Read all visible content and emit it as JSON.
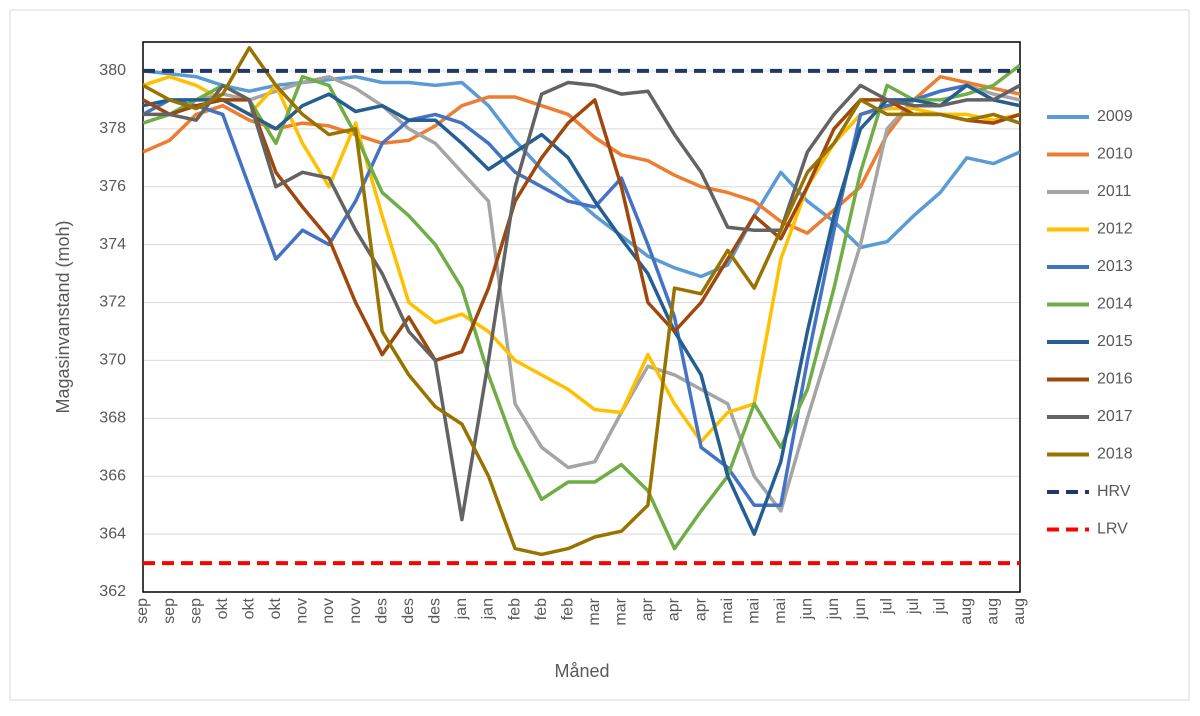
{
  "chart_data": {
    "type": "line",
    "x_label": "Måned",
    "y_label": "Magasinvanstand (moh)",
    "categories": [
      "sep",
      "sep",
      "sep",
      "okt",
      "okt",
      "okt",
      "nov",
      "nov",
      "nov",
      "des",
      "des",
      "des",
      "jan",
      "jan",
      "feb",
      "feb",
      "feb",
      "mar",
      "mar",
      "apr",
      "apr",
      "apr",
      "mai",
      "mai",
      "mai",
      "jun",
      "jun",
      "jun",
      "jul",
      "jul",
      "jul",
      "aug",
      "aug",
      "aug"
    ],
    "ylim": [
      362,
      381
    ],
    "yticks": [
      362,
      364,
      366,
      368,
      370,
      372,
      374,
      376,
      378,
      380
    ],
    "grid": true,
    "legend": "right",
    "series": [
      {
        "name": "2009",
        "color": "#5b9bd5",
        "values": [
          380,
          379.9,
          379.8,
          379.5,
          379.3,
          379.5,
          379.6,
          379.7,
          379.8,
          379.6,
          379.6,
          379.5,
          379.6,
          378.8,
          377.6,
          376.6,
          375.8,
          375,
          374.3,
          373.6,
          373.2,
          372.9,
          373.3,
          375,
          376.5,
          375.5,
          374.8,
          373.9,
          374.1,
          375,
          375.8,
          377,
          376.8,
          377.2
        ]
      },
      {
        "name": "2010",
        "color": "#ed7d31",
        "values": [
          377.2,
          377.6,
          378.5,
          378.8,
          378.3,
          378,
          378.2,
          378.1,
          377.8,
          377.5,
          377.6,
          378.1,
          378.8,
          379.1,
          379.1,
          378.8,
          378.5,
          377.7,
          377.1,
          376.9,
          376.4,
          376,
          375.8,
          375.5,
          374.8,
          374.4,
          375.2,
          376,
          377.8,
          379,
          379.8,
          379.6,
          379.4,
          379.2
        ]
      },
      {
        "name": "2011",
        "color": "#a5a5a5",
        "values": [
          379,
          378.5,
          379,
          379.2,
          379,
          379.3,
          379.6,
          379.8,
          379.4,
          378.8,
          378,
          377.5,
          376.5,
          375.5,
          368.5,
          367,
          366.3,
          366.5,
          368.2,
          369.8,
          369.5,
          369,
          368.5,
          366,
          364.8,
          368,
          371,
          374,
          378,
          379,
          379.3,
          379.5,
          379.2,
          379
        ]
      },
      {
        "name": "2012",
        "color": "#ffc000",
        "values": [
          379.5,
          379.8,
          379.5,
          379,
          378.5,
          379.5,
          377.5,
          376,
          378.2,
          375,
          372,
          371.3,
          371.6,
          371,
          370,
          369.5,
          369,
          368.3,
          368.2,
          370.2,
          368.5,
          367.2,
          368.2,
          368.5,
          373.5,
          376,
          377.5,
          378.5,
          378.7,
          378.7,
          378.5,
          378.5,
          378.3,
          378.5
        ]
      },
      {
        "name": "2013",
        "color": "#4472c4",
        "values": [
          378.5,
          379,
          378.8,
          378.5,
          376,
          373.5,
          374.5,
          374,
          375.5,
          377.5,
          378.3,
          378.5,
          378.2,
          377.5,
          376.5,
          376,
          375.5,
          375.3,
          376.3,
          374,
          371.5,
          367,
          366.3,
          365,
          365,
          370,
          374.5,
          378.5,
          378.8,
          379,
          379.3,
          379.5,
          379,
          379.5
        ]
      },
      {
        "name": "2014",
        "color": "#70ad47",
        "values": [
          378.2,
          378.5,
          379,
          379.5,
          379,
          377.5,
          379.8,
          379.5,
          377.8,
          375.8,
          375,
          374,
          372.5,
          369.5,
          367,
          365.2,
          365.8,
          365.8,
          366.4,
          365.5,
          363.5,
          364.8,
          366,
          368.5,
          367,
          369,
          372.5,
          376.5,
          379.5,
          379,
          379,
          379.2,
          379.5,
          380.2
        ]
      },
      {
        "name": "2015",
        "color": "#255e91",
        "values": [
          378.8,
          379,
          379,
          379,
          378.5,
          378,
          378.8,
          379.2,
          378.6,
          378.8,
          378.3,
          378.3,
          377.5,
          376.6,
          377.2,
          377.8,
          377,
          375.5,
          374.2,
          373,
          371,
          369.5,
          366,
          364,
          366.5,
          371,
          375,
          378,
          379,
          379,
          378.8,
          379.5,
          379,
          378.8
        ]
      },
      {
        "name": "2016",
        "color": "#9e480e",
        "values": [
          379,
          378.5,
          378.8,
          379,
          379,
          376.5,
          375.3,
          374.2,
          372,
          370.2,
          371.5,
          370,
          370.3,
          372.5,
          375.5,
          377,
          378.2,
          379,
          376,
          372,
          371,
          372,
          373.5,
          375,
          374.2,
          376,
          378,
          379,
          379,
          378.5,
          378.5,
          378.3,
          378.2,
          378.5
        ]
      },
      {
        "name": "2017",
        "color": "#636363",
        "values": [
          378.5,
          378.5,
          378.3,
          379.5,
          379,
          376,
          376.5,
          376.3,
          374.5,
          373,
          371,
          370,
          364.5,
          370,
          376,
          379.2,
          379.6,
          379.5,
          379.2,
          379.3,
          377.8,
          376.5,
          374.6,
          374.5,
          374.5,
          377.2,
          378.5,
          379.5,
          379,
          378.8,
          378.8,
          379,
          379,
          379.5
        ]
      },
      {
        "name": "2018",
        "color": "#997300",
        "values": [
          379.5,
          379,
          378.7,
          379.2,
          380.8,
          379.5,
          378.5,
          377.8,
          378,
          371,
          369.5,
          368.4,
          367.8,
          366,
          363.5,
          363.3,
          363.5,
          363.9,
          364.1,
          365,
          372.5,
          372.3,
          373.8,
          372.5,
          374.5,
          376.5,
          377.5,
          379,
          378.5,
          378.5,
          378.5,
          378.3,
          378.5,
          378.2
        ]
      },
      {
        "name": "HRV",
        "color": "#203864",
        "dashed": true,
        "values": [
          380,
          380,
          380,
          380,
          380,
          380,
          380,
          380,
          380,
          380,
          380,
          380,
          380,
          380,
          380,
          380,
          380,
          380,
          380,
          380,
          380,
          380,
          380,
          380,
          380,
          380,
          380,
          380,
          380,
          380,
          380,
          380,
          380,
          380
        ]
      },
      {
        "name": "LRV",
        "color": "#ff0000",
        "dashed": true,
        "values": [
          363,
          363,
          363,
          363,
          363,
          363,
          363,
          363,
          363,
          363,
          363,
          363,
          363,
          363,
          363,
          363,
          363,
          363,
          363,
          363,
          363,
          363,
          363,
          363,
          363,
          363,
          363,
          363,
          363,
          363,
          363,
          363,
          363,
          363
        ]
      }
    ]
  }
}
